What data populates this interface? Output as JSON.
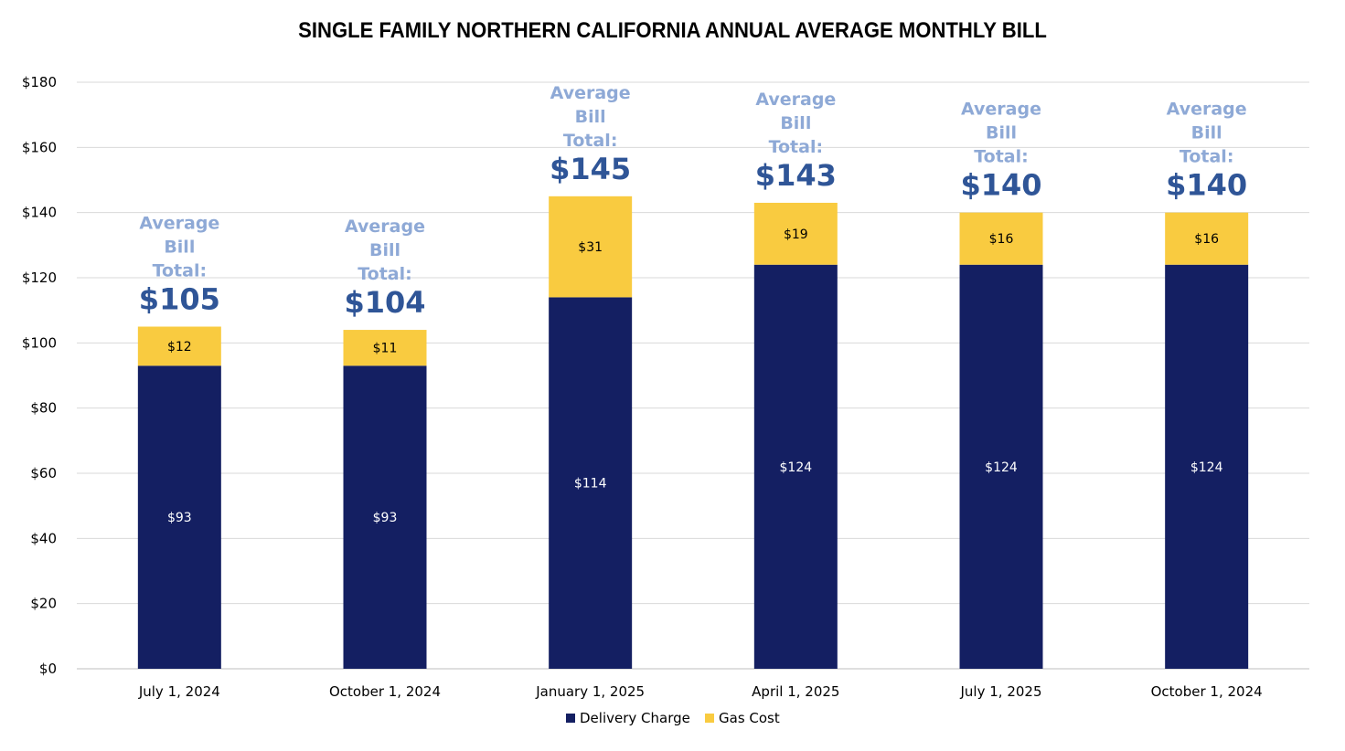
{
  "chart_data": {
    "type": "bar",
    "stacked": true,
    "title": "SINGLE FAMILY NORTHERN CALIFORNIA ANNUAL AVERAGE MONTHLY BILL",
    "categories": [
      "July 1, 2024",
      "October 1, 2024",
      "January 1, 2025",
      "April 1, 2025",
      "July 1, 2025",
      "October 1, 2024"
    ],
    "series": [
      {
        "name": "Delivery Charge",
        "values": [
          93,
          93,
          114,
          124,
          124,
          124
        ],
        "labels": [
          "$93",
          "$93",
          "$114",
          "$124",
          "$124",
          "$124"
        ],
        "color": "#141F62",
        "label_color": "#FFFFFF"
      },
      {
        "name": "Gas Cost",
        "values": [
          12,
          11,
          31,
          19,
          16,
          16
        ],
        "labels": [
          "$12",
          "$11",
          "$31",
          "$19",
          "$16",
          "$16"
        ],
        "color": "#F9CB40",
        "label_color": "#000000"
      }
    ],
    "totals": {
      "caption_lines": [
        "Average",
        "Bill",
        "Total:"
      ],
      "values": [
        "$105",
        "$104",
        "$145",
        "$143",
        "$140",
        "$140"
      ],
      "caption_color": "#8EA9D6",
      "value_color": "#2F5597"
    },
    "yaxis": {
      "ticks": [
        0,
        20,
        40,
        60,
        80,
        100,
        120,
        140,
        160,
        180
      ],
      "tick_labels": [
        "$0",
        "$20",
        "$40",
        "$60",
        "$80",
        "$100",
        "$120",
        "$140",
        "$160",
        "$180"
      ],
      "ylim": [
        0,
        180
      ]
    },
    "xlabel": "",
    "ylabel": "",
    "grid": true,
    "legend_position": "bottom-center"
  }
}
